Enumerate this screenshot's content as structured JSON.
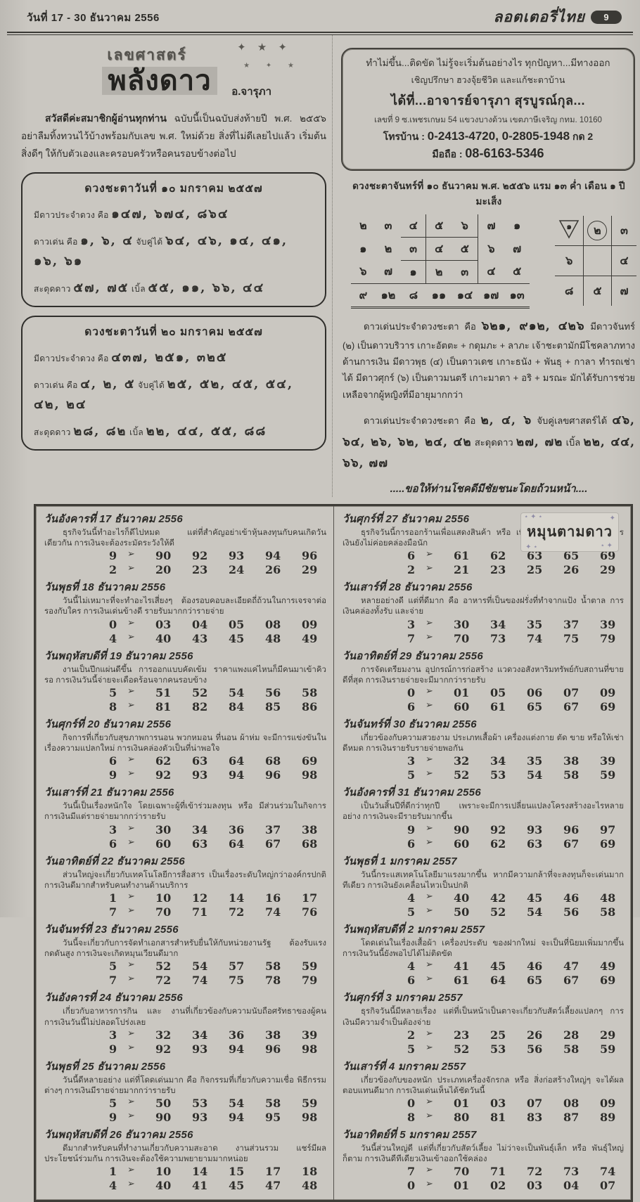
{
  "colors": {
    "paper": "#c9c6c0",
    "ink": "#2b2a27",
    "pill_bg": "#3a3935",
    "pill_text": "#e8e6e0"
  },
  "icons": {
    "arrow": "➢",
    "star": "✦",
    "small_star": "⋆"
  },
  "header": {
    "date_range": "วันที่ 17 - 30 ธันวาคม 2556",
    "brand": "ลอตเตอรี่ไทย",
    "page_number": "9"
  },
  "intro": {
    "logo_top": "เลขศาสตร์",
    "logo_main": "พลังดาว",
    "logo_by": "อ.จารุภา",
    "greeting_bold": "สวัสดีค่ะสมาชิกผู้อ่านทุกท่าน",
    "greeting_text": "ฉบับนี้เป็นฉบับส่งท้ายปี พ.ศ. ๒๕๕๖ อย่าลืมทิ้งทวนไว้บ้างพร้อมกับเลข พ.ศ. ใหม่ด้วย สิ่งที่ไม่ดีเลยไปแล้ว เริ่มต้นสิ่งดีๆ ให้กับตัวเองและครอบครัวหรือคนรอบข้างต่อไป"
  },
  "horoscope_boxes": [
    {
      "title": "ดวงชะตาวันที่ ๑๐ มกราคม ๒๕๕๗",
      "l1_label": "มีดาวประจำดวง คือ",
      "l1_value": "๑๔๗, ๖๗๔, ๘๖๔",
      "l2_label": "ดาวเด่น คือ",
      "l2_value": "๑, ๖, ๔",
      "l2_label2": "จับคู่ได้",
      "l2_value2": "๖๔, ๔๖, ๑๔, ๔๑, ๑๖, ๖๑",
      "l3_label": "สะดุดดาว",
      "l3_value": "๕๗, ๗๕",
      "l3_label2": "เบิ้ล",
      "l3_value2": "๕๕, ๑๑, ๖๖, ๔๔"
    },
    {
      "title": "ดวงชะตาวันที่ ๒๐ มกราคม ๒๕๕๗",
      "l1_label": "มีดาวประจำดวง คือ",
      "l1_value": "๔๓๗, ๒๕๑, ๓๒๕",
      "l2_label": "ดาวเด่น คือ",
      "l2_value": "๔, ๒, ๕",
      "l2_label2": "จับคู่ได้",
      "l2_value2": "๒๕, ๕๒, ๔๕, ๕๔, ๔๒, ๒๔",
      "l3_label": "สะดุดดาว",
      "l3_value": "๒๘, ๘๒",
      "l3_label2": "เบิ้ล",
      "l3_value2": "๒๒, ๔๔, ๕๕, ๘๘"
    }
  ],
  "ad": {
    "line1": "ทำไม่ขึ้น...ติดขัด ไม่รู้จะเริ่มต้นอย่างไร ทุกปัญหา...มีทางออก",
    "line2": "เชิญปรึกษา ฮวงจุ้ยชีวิต และแก้ชะตาบ้าน",
    "line3": "ได้ที่...อาจารย์จารุภา  สุรบูรณ์กุล...",
    "line4": "เลขที่ 9 ซ.เพชรเกษม 54 แขวงบางด้วน เขตภาษีเจริญ กทม. 10160",
    "line5_label": "โทรบ้าน :",
    "line5_tel": "0-2413-4720, 0-2805-1948",
    "line5_suffix": "กด 2",
    "line6_label": "มือถือ :",
    "line6_tel": "08-6163-5346"
  },
  "astro": {
    "date_line": "ดวงชะตาจันทร์ที่ ๑๐ ธันวาคม พ.ศ. ๒๕๕๖ แรม ๑๓ ค่ำ เดือน ๑ ปีมะเส็ง",
    "grid_rows": [
      [
        "๒",
        "๓",
        "๔",
        "๕",
        "๖",
        "๗",
        "๑"
      ],
      [
        "๑",
        "๒",
        "๓",
        "๔",
        "๕",
        "๖",
        "๗"
      ],
      [
        "๖",
        "๗",
        "๑",
        "๒",
        "๓",
        "๔",
        "๕"
      ]
    ],
    "grid_sums": [
      "๙",
      "๑๒",
      "๘",
      "๑๑",
      "๑๔",
      "๑๗",
      "๑๓"
    ],
    "square": [
      [
        "๑",
        "๒",
        "๓"
      ],
      [
        "๖",
        "",
        "๔"
      ],
      [
        "๘",
        "๕",
        "๗"
      ]
    ],
    "para1_lead": "ดาวเด่นประจำดวงชะตา คือ",
    "para1_nums": "๖๒๑, ๙๑๒, ๔๒๖",
    "para1_rest": "มีดาวจันทร์ (๒) เป็นดาวบริวาร เกาะอัตตะ + กดุมภะ + ลาภะ เจ้าชะตามักมีโชคลาภทางด้านการเงิน มีดาวพุธ (๔) เป็นดาวเดช เกาะธนัง + พันธุ + กาลา ทำรถเช่าได้ มีดาวศุกร์ (๖) เป็นดาวมนตรี เกาะมาตา + อริ + มรณะ มักได้รับการช่วยเหลือจากผู้หญิงที่มีอายุมากกว่า",
    "para2_lead": "ดาวเด่นประจำดวงชะตา คือ",
    "para2_nums1": "๒, ๔, ๖",
    "para2_label1": "จับคู่เลขศาสตร์ได้",
    "para2_nums2": "๔๖, ๖๔, ๒๖, ๖๒, ๒๔, ๔๒",
    "para2_label2": "สะดุดดาว",
    "para2_nums3": "๒๗, ๗๒",
    "para2_label3": "เบิ้ล",
    "para2_nums4": "๒๒, ๔๔, ๖๖, ๗๗",
    "closing": ".....ขอให้ท่านโชคดีมีชัยชนะโดยถ้วนหน้า...."
  },
  "stamp": "หมุนตามดาว",
  "predictions": {
    "left": [
      {
        "date": "วันอังคารที่ 17 ธันวาคม 2556",
        "desc": "ธุรกิจวันนี้ทำอะไรก็ดีไปหมด แต่ที่สำคัญอย่าเข้าหุ้นลงทุนกับคนเกิดวันเดียวกัน การเงินจะต้องระมัดระวังให้ดี",
        "rows": [
          {
            "lead": "9",
            "nums": [
              "90",
              "92",
              "93",
              "94",
              "96"
            ]
          },
          {
            "lead": "2",
            "nums": [
              "20",
              "23",
              "24",
              "26",
              "29"
            ]
          }
        ]
      },
      {
        "date": "วันพุธที่ 18 ธันวาคม 2556",
        "desc": "วันนี้ไม่เหมาะที่จะทำอะไรเสี่ยงๆ ต้องรอบคอบละเอียดถี่ถ้วนในการเจรจาต่อรองกับใคร การเงินเด่นข้างดี รายรับมากกว่ารายจ่าย",
        "rows": [
          {
            "lead": "0",
            "nums": [
              "03",
              "04",
              "05",
              "08",
              "09"
            ]
          },
          {
            "lead": "4",
            "nums": [
              "40",
              "43",
              "45",
              "48",
              "49"
            ]
          }
        ]
      },
      {
        "date": "วันพฤหัสบดีที่ 19 ธันวาคม 2556",
        "desc": "งานเป็นปึกแผ่นดีขึ้น การออกแบบคัดเข้ม ราคาแพงแค่ไหนก็มีคนมาเข้าคิวรอ การเงินวันนี้จ่ายจะเดือดร้อนจากคนรอบข้าง",
        "rows": [
          {
            "lead": "5",
            "nums": [
              "51",
              "52",
              "54",
              "56",
              "58"
            ]
          },
          {
            "lead": "8",
            "nums": [
              "81",
              "82",
              "84",
              "85",
              "86"
            ]
          }
        ]
      },
      {
        "date": "วันศุกร์ที่ 20 ธันวาคม 2556",
        "desc": "กิจการที่เกี่ยวกับสุขภาพการนอน พวกหมอน ที่นอน ผ้าห่ม จะมีการแข่งขันในเรื่องความแปลกใหม่ การเงินคล่องตัวเป็นที่น่าพอใจ",
        "rows": [
          {
            "lead": "6",
            "nums": [
              "62",
              "63",
              "64",
              "68",
              "69"
            ]
          },
          {
            "lead": "9",
            "nums": [
              "92",
              "93",
              "94",
              "96",
              "98"
            ]
          }
        ]
      },
      {
        "date": "วันเสาร์ที่ 21 ธันวาคม 2556",
        "desc": "วันนี้เป็นเรื่องหนักใจ โดยเฉพาะผู้ที่เข้าร่วมลงทุน หรือ มีส่วนร่วมในกิจการ การเงินมีแต่รายจ่ายมากกว่ารายรับ",
        "rows": [
          {
            "lead": "3",
            "nums": [
              "30",
              "34",
              "36",
              "37",
              "38"
            ]
          },
          {
            "lead": "6",
            "nums": [
              "60",
              "63",
              "64",
              "67",
              "68"
            ]
          }
        ]
      },
      {
        "date": "วันอาทิตย์ที่ 22 ธันวาคม 2556",
        "desc": "ส่วนใหญ่จะเกี่ยวกับเทคโนโลยีการสื่อสาร เป็นเรื่องระดับใหญ่กว่าองค์กรปกติ การเงินดีมากสำหรับคนทำงานด้านบริการ",
        "rows": [
          {
            "lead": "1",
            "nums": [
              "10",
              "12",
              "14",
              "16",
              "17"
            ]
          },
          {
            "lead": "7",
            "nums": [
              "70",
              "71",
              "72",
              "74",
              "76"
            ]
          }
        ]
      },
      {
        "date": "วันจันทร์ที่ 23 ธันวาคม 2556",
        "desc": "วันนี้จะเกี่ยวกับการจัดทำเอกสารสำหรับยื่นให้กับหน่วยงานรัฐ ต้องรับแรงกดดันสูง การเงินจะเกิดหมุนเวียนดีมาก",
        "rows": [
          {
            "lead": "5",
            "nums": [
              "52",
              "54",
              "57",
              "58",
              "59"
            ]
          },
          {
            "lead": "7",
            "nums": [
              "72",
              "74",
              "75",
              "78",
              "79"
            ]
          }
        ]
      },
      {
        "date": "วันอังคารที่ 24 ธันวาคม 2556",
        "desc": "เกี่ยวกับอาหารการกิน และ งานที่เกี่ยวข้องกับความนับถือศรัทธาของผู้คน การเงินวันนี้ไม่ปลอดโปร่งเลย",
        "rows": [
          {
            "lead": "3",
            "nums": [
              "32",
              "34",
              "36",
              "38",
              "39"
            ]
          },
          {
            "lead": "9",
            "nums": [
              "92",
              "93",
              "94",
              "96",
              "98"
            ]
          }
        ]
      },
      {
        "date": "วันพุธที่ 25 ธันวาคม 2556",
        "desc": "วันนี้ดีหลายอย่าง แต่ที่โดดเด่นมาก คือ กิจกรรมที่เกี่ยวกับความเชื่อ พิธีกรรมต่างๆ การเงินมีรายจ่ายมากกว่ารายรับ",
        "rows": [
          {
            "lead": "5",
            "nums": [
              "50",
              "53",
              "54",
              "58",
              "59"
            ]
          },
          {
            "lead": "9",
            "nums": [
              "90",
              "93",
              "94",
              "95",
              "98"
            ]
          }
        ]
      },
      {
        "date": "วันพฤหัสบดีที่ 26 ธันวาคม 2556",
        "desc": "ดีมากสำหรับคนที่ทำงานเกี่ยวกับความสะอาด งานส่วนรวม แชร์มีผลประโยชน์ร่วมกัน การเงินจะต้องใช้ความพยายามมากหน่อย",
        "rows": [
          {
            "lead": "1",
            "nums": [
              "10",
              "14",
              "15",
              "17",
              "18"
            ]
          },
          {
            "lead": "4",
            "nums": [
              "40",
              "41",
              "45",
              "47",
              "48"
            ]
          }
        ]
      }
    ],
    "right": [
      {
        "date": "วันศุกร์ที่ 27 ธันวาคม 2556",
        "desc": "ธุรกิจวันนี้การออกร้านเพื่อแสดงสินค้า หรือ เพื่อขายส่งจะดีมากทีเดียว การเงินยังไม่ค่อยคล่องมือนัก",
        "rows": [
          {
            "lead": "6",
            "nums": [
              "61",
              "62",
              "63",
              "65",
              "69"
            ]
          },
          {
            "lead": "2",
            "nums": [
              "21",
              "23",
              "25",
              "26",
              "29"
            ]
          }
        ]
      },
      {
        "date": "วันเสาร์ที่ 28 ธันวาคม 2556",
        "desc": "หลายอย่างดี แต่ที่ดีมาก คือ อาหารที่เป็นของฝรั่งที่ทำจากแป้ง น้ำตาล การเงินคล่องทั้งรับ และจ่าย",
        "rows": [
          {
            "lead": "3",
            "nums": [
              "30",
              "34",
              "35",
              "37",
              "39"
            ]
          },
          {
            "lead": "7",
            "nums": [
              "70",
              "73",
              "74",
              "75",
              "79"
            ]
          }
        ]
      },
      {
        "date": "วันอาทิตย์ที่ 29 ธันวาคม 2556",
        "desc": "การจัดเตรียมงาน อุปกรณ์การก่อสร้าง แวดวงอสังหาริมทรัพย์กับสถานที่ขายดีที่สุด การเงินรายจ่ายจะมีมากกว่ารายรับ",
        "rows": [
          {
            "lead": "0",
            "nums": [
              "01",
              "05",
              "06",
              "07",
              "09"
            ]
          },
          {
            "lead": "6",
            "nums": [
              "60",
              "61",
              "65",
              "67",
              "69"
            ]
          }
        ]
      },
      {
        "date": "วันจันทร์ที่ 30 ธันวาคม 2556",
        "desc": "เกี่ยวข้องกับความสวยงาม ประเภทเสื้อผ้า เครื่องแต่งกาย ตัด ขาย หรือให้เช่าดีหมด การเงินรายรับรายจ่ายพอกัน",
        "rows": [
          {
            "lead": "3",
            "nums": [
              "32",
              "34",
              "35",
              "38",
              "39"
            ]
          },
          {
            "lead": "5",
            "nums": [
              "52",
              "53",
              "54",
              "58",
              "59"
            ]
          }
        ]
      },
      {
        "date": "วันอังคารที่ 31 ธันวาคม 2556",
        "desc": "เป็นวันสิ้นปีที่ดีกว่าทุกปี เพราะจะมีการเปลี่ยนแปลงโครงสร้างอะไรหลายอย่าง การเงินจะมีรายรับมากขึ้น",
        "rows": [
          {
            "lead": "9",
            "nums": [
              "90",
              "92",
              "93",
              "96",
              "97"
            ]
          },
          {
            "lead": "6",
            "nums": [
              "60",
              "62",
              "63",
              "67",
              "69"
            ]
          }
        ]
      },
      {
        "date": "วันพุธที่ 1 มกราคม 2557",
        "desc": "วันนี้กระแสเทคโนโลยีมาแรงมากขึ้น หากมีความกล้าที่จะลงทุนก็จะเด่นมากทีเดียว การเงินยังเคลื่อนไหวเป็นปกติ",
        "rows": [
          {
            "lead": "4",
            "nums": [
              "40",
              "42",
              "45",
              "46",
              "48"
            ]
          },
          {
            "lead": "5",
            "nums": [
              "50",
              "52",
              "54",
              "56",
              "58"
            ]
          }
        ]
      },
      {
        "date": "วันพฤหัสบดีที่ 2 มกราคม 2557",
        "desc": "โดดเด่นในเรื่องเสื้อผ้า เครื่องประดับ ของฝากใหม่ จะเป็นที่นิยมเพิ่มมากขึ้น การเงินวันนี้ยังพอไปได้ไม่ติดขัด",
        "rows": [
          {
            "lead": "4",
            "nums": [
              "41",
              "45",
              "46",
              "47",
              "49"
            ]
          },
          {
            "lead": "6",
            "nums": [
              "61",
              "64",
              "65",
              "67",
              "69"
            ]
          }
        ]
      },
      {
        "date": "วันศุกร์ที่ 3 มกราคม 2557",
        "desc": "ธุรกิจวันนี้มีหลายเรื่อง แต่ที่เป็นหน้าเป็นตาจะเกี่ยวกับสัตว์เลี้ยงแปลกๆ การเงินมีความจำเป็นต้องจ่าย",
        "rows": [
          {
            "lead": "2",
            "nums": [
              "23",
              "25",
              "26",
              "28",
              "29"
            ]
          },
          {
            "lead": "5",
            "nums": [
              "52",
              "53",
              "56",
              "58",
              "59"
            ]
          }
        ]
      },
      {
        "date": "วันเสาร์ที่ 4 มกราคม 2557",
        "desc": "เกี่ยวข้องกับของหนัก ประเภทเครื่องจักรกล หรือ สิ่งก่อสร้างใหญ่ๆ จะได้ผลตอบแทนดีมาก การเงินเด่นเห็นได้ชัดวันนี้",
        "rows": [
          {
            "lead": "0",
            "nums": [
              "01",
              "03",
              "07",
              "08",
              "09"
            ]
          },
          {
            "lead": "8",
            "nums": [
              "80",
              "81",
              "83",
              "87",
              "89"
            ]
          }
        ]
      },
      {
        "date": "วันอาทิตย์ที่ 5 มกราคม 2557",
        "desc": "วันนี้ส่วนใหญ่ดี แต่ที่เกี่ยวกับสัตว์เลี้ยง ไม่ว่าจะเป็นพันธุ์เล็ก หรือ พันธุ์ใหญ่ก็ตาม การเงินดีทีเดียวเงินเข้าออกใช้คล่อง",
        "rows": [
          {
            "lead": "7",
            "nums": [
              "70",
              "71",
              "72",
              "73",
              "74"
            ]
          },
          {
            "lead": "0",
            "nums": [
              "01",
              "02",
              "03",
              "04",
              "07"
            ]
          }
        ]
      }
    ]
  }
}
